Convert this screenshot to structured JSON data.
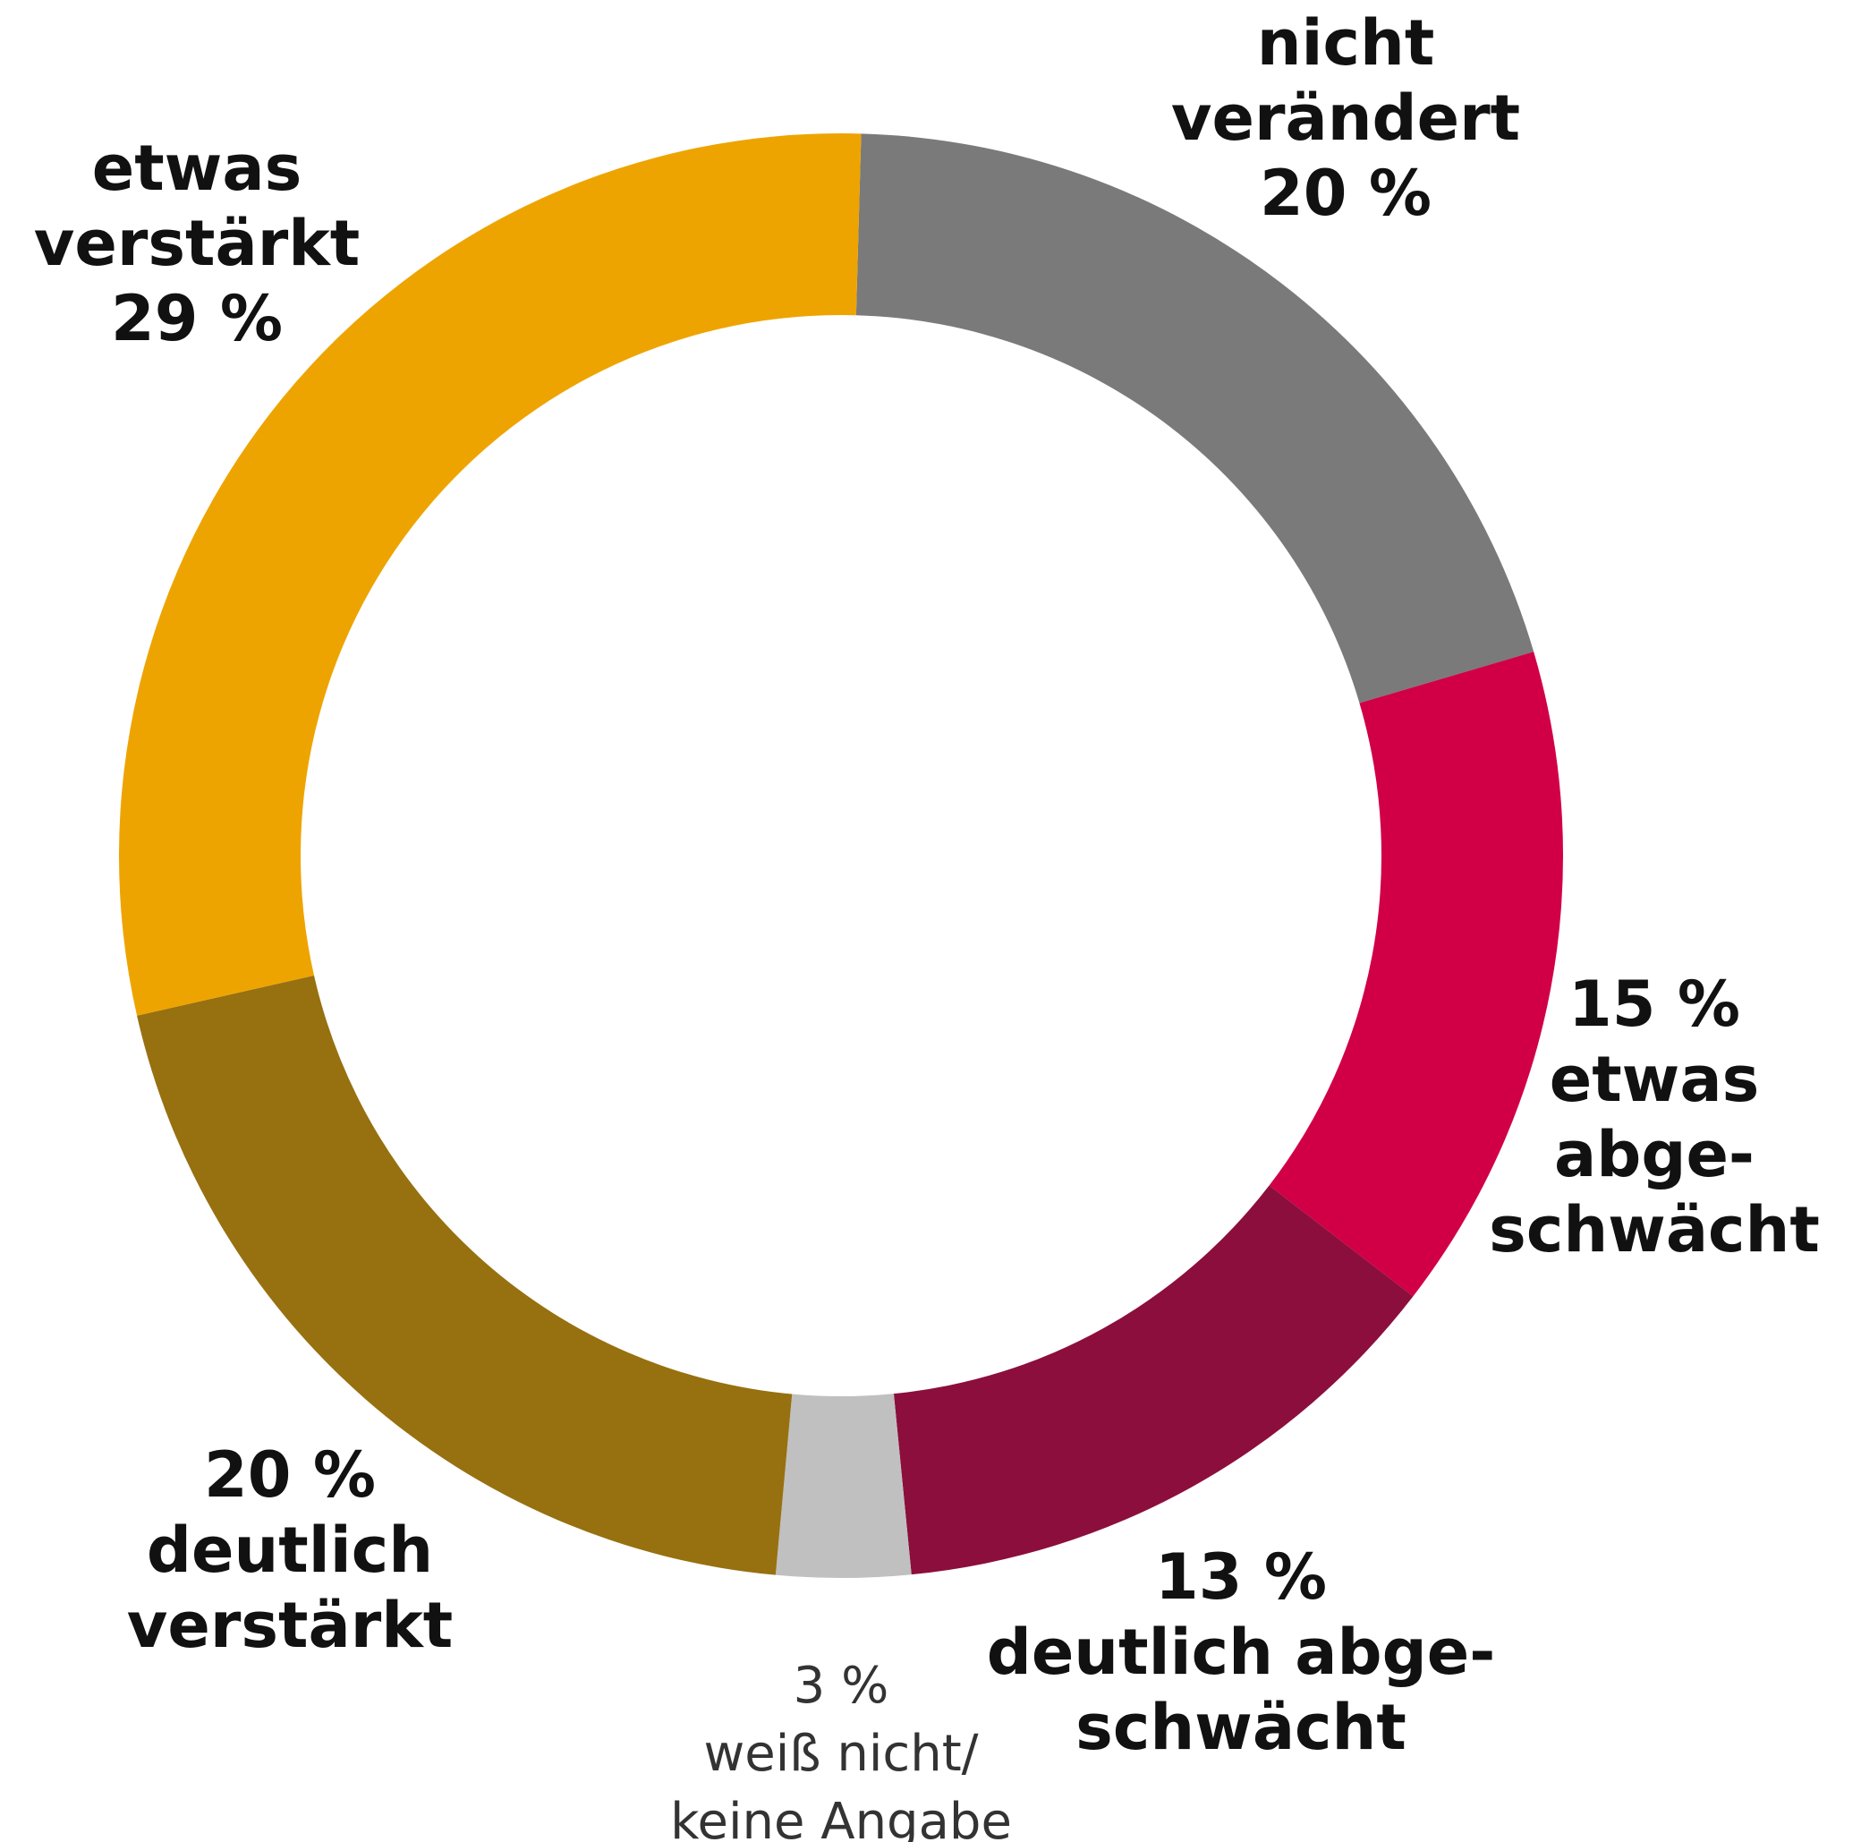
{
  "chart_data": {
    "type": "donut",
    "categories": [
      "nicht\nverändert",
      "etwas\nabge-\nschwächt",
      "deutlich abge-\nschwächt",
      "weiß nicht/\nkeine Angabe",
      "deutlich\nverstärkt",
      "etwas\nverstärkt"
    ],
    "values": [
      20,
      15,
      13,
      3,
      20,
      29
    ],
    "value_labels": [
      "20 %",
      "15 %",
      "13 %",
      "3 %",
      "20 %",
      "29 %"
    ],
    "colors": [
      "#7a7a7a",
      "#d10046",
      "#8c0e3c",
      "#c0c0c0",
      "#977010",
      "#eea400"
    ]
  }
}
